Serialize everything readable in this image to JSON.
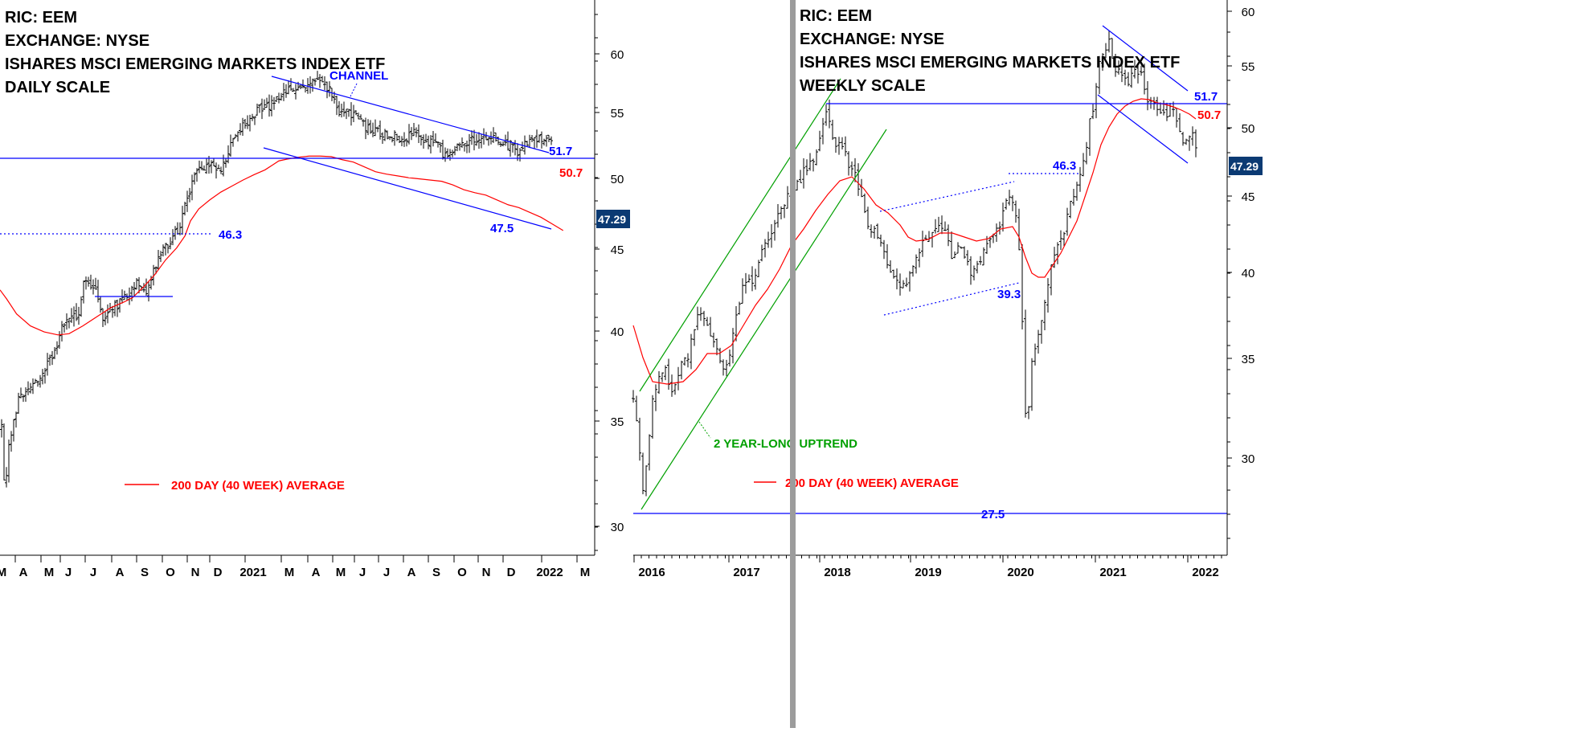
{
  "charts": [
    {
      "id": "daily",
      "header": {
        "ric": "RIC: EEM",
        "exchange": "EXCHANGE: NYSE",
        "name": "ISHARES MSCI EMERGING MARKETS INDEX ETF",
        "scale": "DAILY SCALE"
      },
      "chart_data": {
        "type": "candlestick",
        "y_ticks": [
          "30",
          "35",
          "40",
          "45",
          "50",
          "55",
          "60"
        ],
        "x_ticks": [
          "M",
          "A",
          "M",
          "J",
          "J",
          "A",
          "S",
          "O",
          "N",
          "D",
          "2021",
          "M",
          "A",
          "M",
          "J",
          "J",
          "A",
          "S",
          "O",
          "N",
          "D",
          "2022",
          "M"
        ],
        "last_price": "47.29",
        "levels": [
          {
            "label": "51.7",
            "value": 51.7,
            "style": "solid",
            "color": "#0000ff"
          },
          {
            "label": "46.3",
            "value": 46.3,
            "style": "dotted",
            "color": "#0000ff"
          },
          {
            "label": "50.7",
            "value": 50.7,
            "color": "#ff0000"
          },
          {
            "label": "47.5",
            "value": 47.5,
            "color": "#0000ff"
          }
        ],
        "annotations": [
          "CHANNEL"
        ],
        "legend": "200 DAY (40 WEEK) AVERAGE",
        "series": [
          {
            "name": "200 DAY (40 WEEK) AVERAGE",
            "color": "#ff0000"
          }
        ]
      }
    },
    {
      "id": "weekly",
      "header": {
        "ric": "RIC: EEM",
        "exchange": "EXCHANGE: NYSE",
        "name": "ISHARES MSCI EMERGING MARKETS INDEX ETF",
        "scale": "WEEKLY SCALE"
      },
      "chart_data": {
        "type": "candlestick",
        "y_scale": "log",
        "y_ticks": [
          "30",
          "35",
          "40",
          "45",
          "50",
          "55",
          "60"
        ],
        "x_ticks": [
          "2016",
          "2017",
          "2018",
          "2019",
          "2020",
          "2021",
          "2022"
        ],
        "last_price": "47.29",
        "levels": [
          {
            "label": "51.7",
            "value": 51.7,
            "style": "solid",
            "color": "#0000ff"
          },
          {
            "label": "46.3",
            "value": 46.3,
            "style": "dotted",
            "color": "#0000ff"
          },
          {
            "label": "39.3",
            "value": 39.3,
            "style": "dotted",
            "color": "#0000ff"
          },
          {
            "label": "27.5",
            "value": 27.5,
            "style": "solid",
            "color": "#0000ff"
          },
          {
            "label": "50.7",
            "value": 50.7,
            "color": "#ff0000"
          }
        ],
        "annotations": [
          "2 YEAR-LONG UPTREND"
        ],
        "legend": "200 DAY (40 WEEK) AVERAGE",
        "series": [
          {
            "name": "200 DAY (40 WEEK) AVERAGE",
            "color": "#ff0000"
          }
        ]
      }
    }
  ]
}
